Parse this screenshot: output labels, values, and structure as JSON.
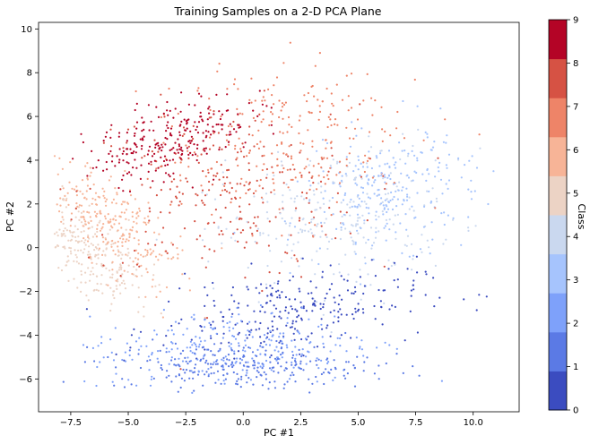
{
  "chart_data": {
    "type": "scatter",
    "title": "Training Samples on a 2-D PCA Plane",
    "xlabel": "PC #1",
    "ylabel": "PC #2",
    "xlim": [
      -8.9,
      12.0
    ],
    "ylim": [
      -7.5,
      10.3
    ],
    "xticks": [
      -7.5,
      -5.0,
      -2.5,
      0.0,
      2.5,
      5.0,
      7.5,
      10.0
    ],
    "xtick_labels": [
      "−7.5",
      "−5.0",
      "−2.5",
      "0.0",
      "2.5",
      "5.0",
      "7.5",
      "10.0"
    ],
    "yticks": [
      -6,
      -4,
      -2,
      0,
      2,
      4,
      6,
      8,
      10
    ],
    "ytick_labels": [
      "−6",
      "−4",
      "−2",
      "0",
      "2",
      "4",
      "6",
      "8",
      "10"
    ],
    "grid": false,
    "colormap": "coolwarm",
    "colorbar": {
      "label": "Class",
      "ticks": [
        "0",
        "1",
        "2",
        "3",
        "4",
        "5",
        "6",
        "7",
        "8",
        "9"
      ],
      "colors": [
        "#3b4cc0",
        "#5b7ae5",
        "#7ea1fa",
        "#a6c4fd",
        "#cad8ef",
        "#ecd3c5",
        "#f7b497",
        "#ee8468",
        "#d65244",
        "#b40426"
      ]
    },
    "classes": [
      {
        "label": "0",
        "center": [
          2.0,
          -2.9
        ],
        "spread": [
          2.9,
          0.9
        ],
        "tilt": 0.12
      },
      {
        "label": "1",
        "center": [
          0.0,
          -5.4
        ],
        "spread": [
          2.8,
          0.55
        ],
        "tilt": 0.0
      },
      {
        "label": "2",
        "center": [
          -0.5,
          -4.6
        ],
        "spread": [
          3.2,
          0.9
        ],
        "tilt": 0.05
      },
      {
        "label": "3",
        "center": [
          6.5,
          2.6
        ],
        "spread": [
          1.9,
          1.3
        ],
        "tilt": 0.3
      },
      {
        "label": "4",
        "center": [
          4.0,
          1.3
        ],
        "spread": [
          2.6,
          1.6
        ],
        "tilt": 0.2
      },
      {
        "label": "5",
        "center": [
          -6.7,
          -0.2
        ],
        "spread": [
          0.8,
          1.6
        ],
        "tilt": 0.9
      },
      {
        "label": "6",
        "center": [
          -5.6,
          1.1
        ],
        "spread": [
          0.9,
          1.7
        ],
        "tilt": 0.9
      },
      {
        "label": "7",
        "center": [
          1.5,
          4.8
        ],
        "spread": [
          2.6,
          1.8
        ],
        "tilt": 0.25
      },
      {
        "label": "8",
        "center": [
          -1.0,
          2.5
        ],
        "spread": [
          3.0,
          2.0
        ],
        "tilt": 0.0
      },
      {
        "label": "9",
        "center": [
          -3.2,
          5.0
        ],
        "spread": [
          1.8,
          0.8
        ],
        "tilt": 0.35
      }
    ]
  }
}
